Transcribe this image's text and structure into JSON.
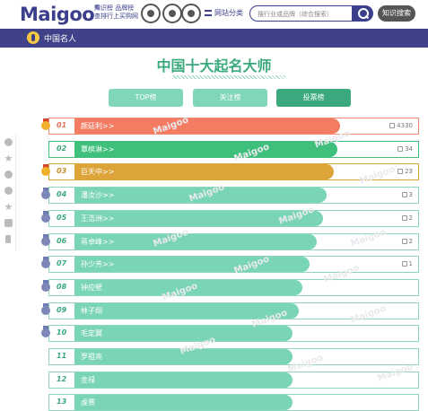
{
  "header": {
    "logo_main": "Maig",
    "logo_oo": "oo",
    "logo_reg": "®",
    "tagline_1": "知识榜 品牌榜",
    "tagline_2": "查排行上买购网",
    "nav_category": "网站分类",
    "search_placeholder": "搜行业或品牌（综合搜索）",
    "zhishi_button": "知识搜索"
  },
  "category_bar": {
    "label": "中国名人"
  },
  "page": {
    "title": "中国十大起名大师",
    "tabs": [
      {
        "label": "TOP榜",
        "active": false
      },
      {
        "label": "关注榜",
        "active": false
      },
      {
        "label": "投票榜",
        "active": true
      }
    ]
  },
  "watermark": "Maigoo",
  "sidebar_icons": [
    "home-icon",
    "star-icon",
    "weibo-icon",
    "qq-icon",
    "favorite-star-icon",
    "message-icon",
    "mobile-icon"
  ],
  "colors": {
    "red": "#f47c63",
    "green": "#3ec07c",
    "gold": "#dda43a",
    "teal": "#7ad4b6",
    "brand": "#3f4189"
  },
  "ranking": [
    {
      "rank": "01",
      "name": "颜廷利>>",
      "votes": "4330",
      "fill": 0.77,
      "color": "red",
      "medal": "gold"
    },
    {
      "rank": "02",
      "name": "覃槟淋>>",
      "votes": "34",
      "fill": 0.76,
      "color": "green",
      "medal": "none"
    },
    {
      "rank": "03",
      "name": "巨天中>>",
      "votes": "23",
      "fill": 0.75,
      "color": "gold",
      "medal": "gold"
    },
    {
      "rank": "04",
      "name": "潘汝沙>>",
      "votes": "3",
      "fill": 0.73,
      "color": "teal",
      "medal": "silver"
    },
    {
      "rank": "05",
      "name": "王浩洲>>",
      "votes": "2",
      "fill": 0.72,
      "color": "teal",
      "medal": "silver"
    },
    {
      "rank": "06",
      "name": "蒋卓峰>>",
      "votes": "2",
      "fill": 0.7,
      "color": "teal",
      "medal": "silver"
    },
    {
      "rank": "07",
      "name": "孙少芳>>",
      "votes": "1",
      "fill": 0.68,
      "color": "teal",
      "medal": "silver"
    },
    {
      "rank": "08",
      "name": "钟应壁",
      "votes": "",
      "fill": 0.66,
      "color": "teal",
      "medal": "silver"
    },
    {
      "rank": "09",
      "name": "林子翔",
      "votes": "",
      "fill": 0.65,
      "color": "teal",
      "medal": "silver"
    },
    {
      "rank": "10",
      "name": "毛定翼",
      "votes": "",
      "fill": 0.63,
      "color": "teal",
      "medal": "silver"
    },
    {
      "rank": "11",
      "name": "罗祖亮",
      "votes": "",
      "fill": 0.63,
      "color": "teal",
      "medal": "none"
    },
    {
      "rank": "12",
      "name": "金禄",
      "votes": "",
      "fill": 0.63,
      "color": "teal",
      "medal": "none"
    },
    {
      "rank": "13",
      "name": "虔赛",
      "votes": "",
      "fill": 0.63,
      "color": "teal",
      "medal": "none"
    }
  ]
}
